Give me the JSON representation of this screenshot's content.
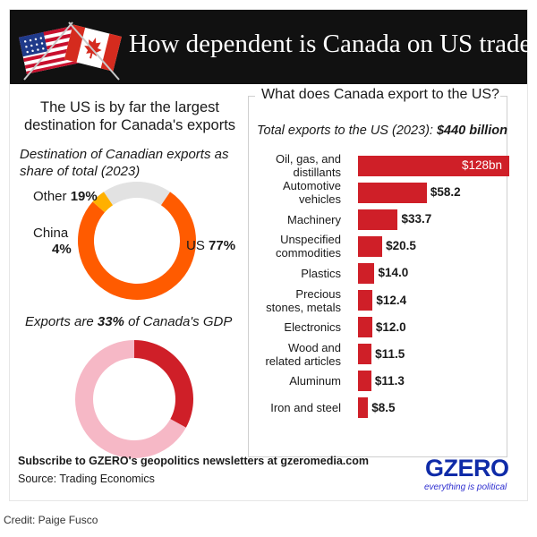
{
  "header": {
    "title": "How dependent is Canada on US trade?"
  },
  "left": {
    "heading": "The US is by far the largest destination for Canada's exports",
    "donut1_title": "Destination of Canadian exports as share of total (2023)",
    "donut2_title_pre": "Exports are ",
    "donut2_title_bold": "33%",
    "donut2_title_post": " of Canada's GDP",
    "labels": {
      "other_name": "Other ",
      "other_pct": "19%",
      "china_name": "China",
      "china_pct": "4%",
      "us_name": "US ",
      "us_pct": "77%"
    }
  },
  "right": {
    "heading": "What does Canada export to the US?",
    "total_pre": "Total exports to the US (2023): ",
    "total_bold": "$440 billion"
  },
  "footer": {
    "subscribe": "Subscribe to GZERO's geopolitics newsletters at gzeromedia.com",
    "source": "Source: Trading Economics",
    "logo": "GZERO",
    "tagline": "everything is political",
    "credit": "Credit: Paige Fusco"
  },
  "chart_data": [
    {
      "type": "pie",
      "title": "Destination of Canadian exports as share of total (2023)",
      "categories": [
        "US",
        "China",
        "Other"
      ],
      "values": [
        77,
        4,
        19
      ],
      "colors": [
        "#ff5b00",
        "#ffb000",
        "#e2e2e2"
      ]
    },
    {
      "type": "pie",
      "title": "Exports are 33% of Canada's GDP",
      "categories": [
        "Exports",
        "Rest of GDP"
      ],
      "values": [
        33,
        67
      ],
      "colors": [
        "#cf1f28",
        "#f6b8c6"
      ]
    },
    {
      "type": "bar",
      "orientation": "horizontal",
      "title": "What does Canada export to the US?",
      "subtitle": "Total exports to the US (2023): $440 billion",
      "categories": [
        "Oil, gas, and distillants",
        "Automotive vehicles",
        "Machinery",
        "Unspecified commodities",
        "Plastics",
        "Precious stones, metals",
        "Electronics",
        "Wood and related articles",
        "Aluminum",
        "Iron and steel"
      ],
      "values": [
        128,
        58.2,
        33.7,
        20.5,
        14.0,
        12.4,
        12.0,
        11.5,
        11.3,
        8.5
      ],
      "value_labels": [
        "$128bn",
        "$58.2",
        "$33.7",
        "$20.5",
        "$14.0",
        "$12.4",
        "$12.0",
        "$11.5",
        "$11.3",
        "$8.5"
      ],
      "bar_color": "#cf1f28"
    }
  ]
}
